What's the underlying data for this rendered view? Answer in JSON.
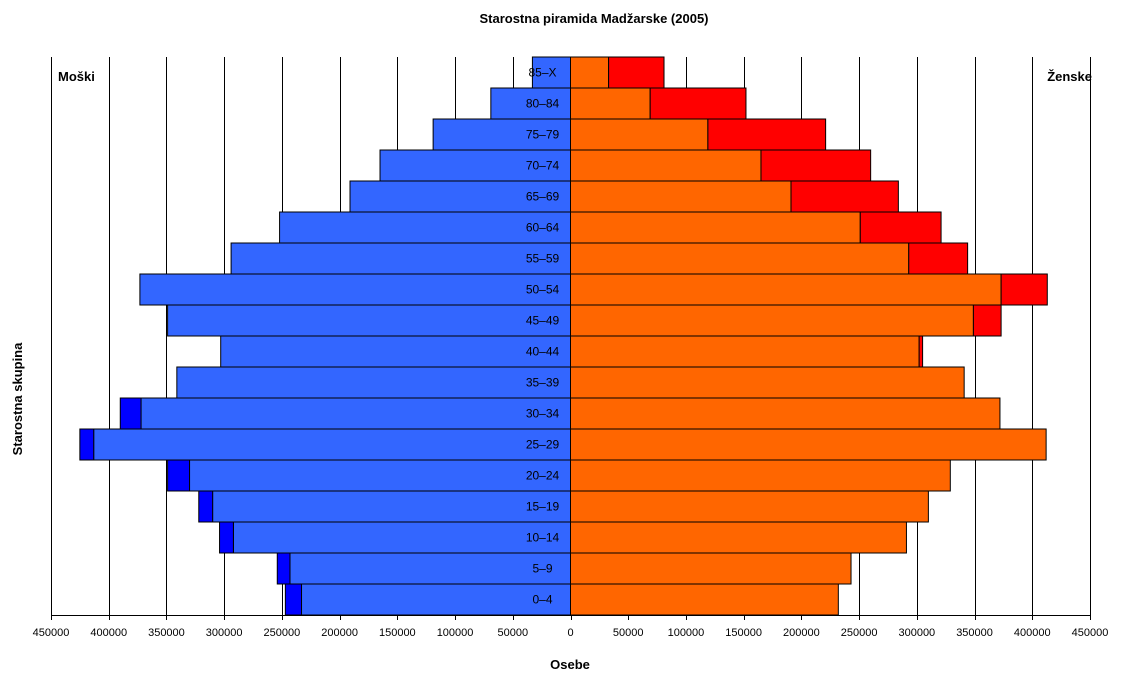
{
  "chart_data": {
    "type": "bar",
    "title": "Starostna piramida Madžarske (2005)",
    "xlabel": "Osebe",
    "ylabel": "Starostna skupina",
    "left_label": "Moški",
    "right_label": "Ženske",
    "xlim": [
      -450000,
      450000
    ],
    "xticks": [
      -450000,
      -400000,
      -350000,
      -300000,
      -250000,
      -200000,
      -150000,
      -100000,
      -50000,
      0,
      50000,
      100000,
      150000,
      200000,
      250000,
      300000,
      350000,
      400000,
      450000
    ],
    "xtick_labels": [
      "450000",
      "400000",
      "350000",
      "300000",
      "250000",
      "200000",
      "150000",
      "100000",
      "50000",
      "0",
      "50000",
      "100000",
      "150000",
      "200000",
      "250000",
      "300000",
      "350000",
      "400000",
      "450000"
    ],
    "grid": true,
    "categories": [
      "0–4",
      "5–9",
      "10–14",
      "15–19",
      "20–24",
      "25–29",
      "30–34",
      "35–39",
      "40–44",
      "45–49",
      "50–54",
      "55–59",
      "60–64",
      "65–69",
      "70–74",
      "75–79",
      "80–84",
      "85–X"
    ],
    "series": [
      {
        "side": "left",
        "color": "#3366ff",
        "values": [
          233000,
          243000,
          292000,
          310000,
          330000,
          413000,
          372000,
          341000,
          303000,
          349000,
          373000,
          294000,
          252000,
          191000,
          165000,
          119000,
          69000,
          33000
        ]
      },
      {
        "side": "left",
        "color": "#0000ff",
        "values": [
          14000,
          11000,
          12000,
          12000,
          19000,
          12000,
          18000,
          0,
          0,
          0,
          0,
          0,
          0,
          0,
          0,
          0,
          0,
          0
        ]
      },
      {
        "side": "right",
        "color": "#ff6600",
        "values": [
          232000,
          243000,
          291000,
          310000,
          329000,
          412000,
          372000,
          341000,
          302000,
          349000,
          373000,
          293000,
          251000,
          191000,
          165000,
          119000,
          69000,
          33000
        ]
      },
      {
        "side": "right",
        "color": "#ff0000",
        "values": [
          0,
          0,
          0,
          0,
          0,
          0,
          0,
          0,
          3000,
          24000,
          40000,
          51000,
          70000,
          93000,
          95000,
          102000,
          83000,
          48000
        ]
      }
    ]
  }
}
